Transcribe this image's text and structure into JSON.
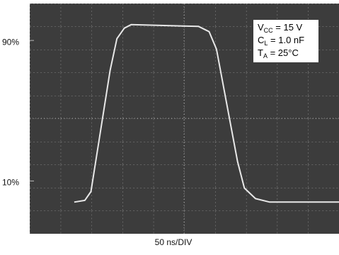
{
  "chart_data": {
    "type": "line",
    "xlabel": "50 ns/DIV",
    "xlim": [
      0,
      500
    ],
    "ylim": [
      -20,
      111
    ],
    "yticks": [
      {
        "value": 10,
        "label": "10%"
      },
      {
        "value": 90,
        "label": "90%"
      }
    ],
    "x": [
      72,
      89,
      99,
      112,
      130,
      141,
      153,
      164,
      273,
      290,
      302,
      319,
      336,
      347,
      365,
      388,
      500
    ],
    "series": [
      {
        "color": "#e8e8e8",
        "values": [
          -2,
          -1,
          4,
          33,
          73,
          91,
          97,
          99,
          98,
          95,
          85,
          53,
          21,
          6,
          0,
          -2,
          -2
        ]
      }
    ],
    "annotations": [
      {
        "main": "V",
        "sub": "CC",
        "rest": " = 15 V"
      },
      {
        "main": "C",
        "sub": "L",
        "rest": " = 1.0 nF"
      },
      {
        "main": "T",
        "sub": "A",
        "rest": " = 25°C"
      }
    ]
  }
}
